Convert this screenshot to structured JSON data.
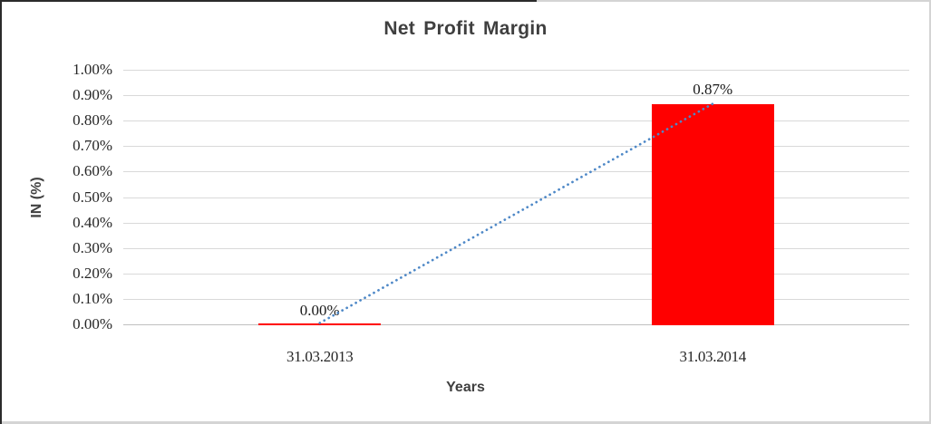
{
  "chart": {
    "title": "Net Profit Margin",
    "y_axis_title": "IN (%)",
    "x_axis_title": "Years"
  },
  "chart_data": {
    "type": "bar",
    "title": "Net Profit Margin",
    "xlabel": "Years",
    "ylabel": "IN (%)",
    "categories": [
      "31.03.2013",
      "31.03.2014"
    ],
    "series": [
      {
        "name": "Net Profit Margin",
        "values": [
          0.0,
          0.87
        ]
      }
    ],
    "data_labels": [
      "0.00%",
      "0.87%"
    ],
    "y_ticks": [
      "0.00%",
      "0.10%",
      "0.20%",
      "0.30%",
      "0.40%",
      "0.50%",
      "0.60%",
      "0.70%",
      "0.80%",
      "0.90%",
      "1.00%"
    ],
    "ylim": [
      0,
      1.0
    ],
    "grid": "horizontal",
    "legend": "none",
    "bar_color": "#FF0000",
    "gridline_color": "#D9D9D9",
    "trendline": {
      "type": "linear",
      "style": "dotted",
      "color": "#4E88C7",
      "from": [
        0,
        0.0
      ],
      "to": [
        1,
        0.87
      ]
    }
  }
}
